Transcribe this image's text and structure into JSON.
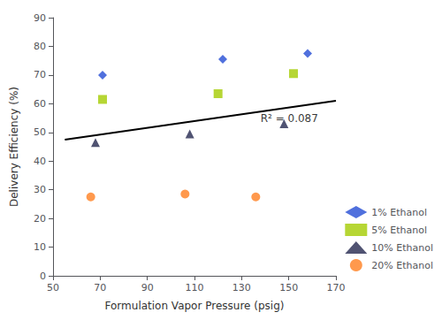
{
  "chart_data": {
    "type": "scatter",
    "xlabel": "Formulation Vapor Pressure (psig)",
    "ylabel": "Delivery Efficiency (%)",
    "xlim": [
      50,
      170
    ],
    "ylim": [
      0,
      90
    ],
    "xticks": [
      50,
      70,
      90,
      110,
      130,
      150,
      170
    ],
    "yticks": [
      0,
      10,
      20,
      30,
      40,
      50,
      60,
      70,
      80,
      90
    ],
    "grid": false,
    "legend": "lower right",
    "series": [
      {
        "name": "1% Ethanol",
        "marker": "diamond",
        "x": [
          71,
          122,
          158
        ],
        "values": [
          70,
          75.5,
          77.5
        ]
      },
      {
        "name": "5% Ethanol",
        "marker": "square",
        "x": [
          71,
          120,
          152
        ],
        "values": [
          61.5,
          63.5,
          70.5
        ]
      },
      {
        "name": "10% Ethanol",
        "marker": "triangle",
        "x": [
          68,
          108,
          148
        ],
        "values": [
          46.5,
          49.5,
          53
        ]
      },
      {
        "name": "20% Ethanol",
        "marker": "circle",
        "x": [
          66,
          106,
          136
        ],
        "values": [
          27.5,
          28.5,
          27.5
        ]
      },
      {
        "type": "line",
        "color": "black",
        "x": [
          55,
          170
        ],
        "values": [
          47.49,
          61.06
        ]
      }
    ],
    "annotations": [
      {
        "text": "R² = 0.087",
        "x": 138,
        "y": 55
      }
    ]
  }
}
